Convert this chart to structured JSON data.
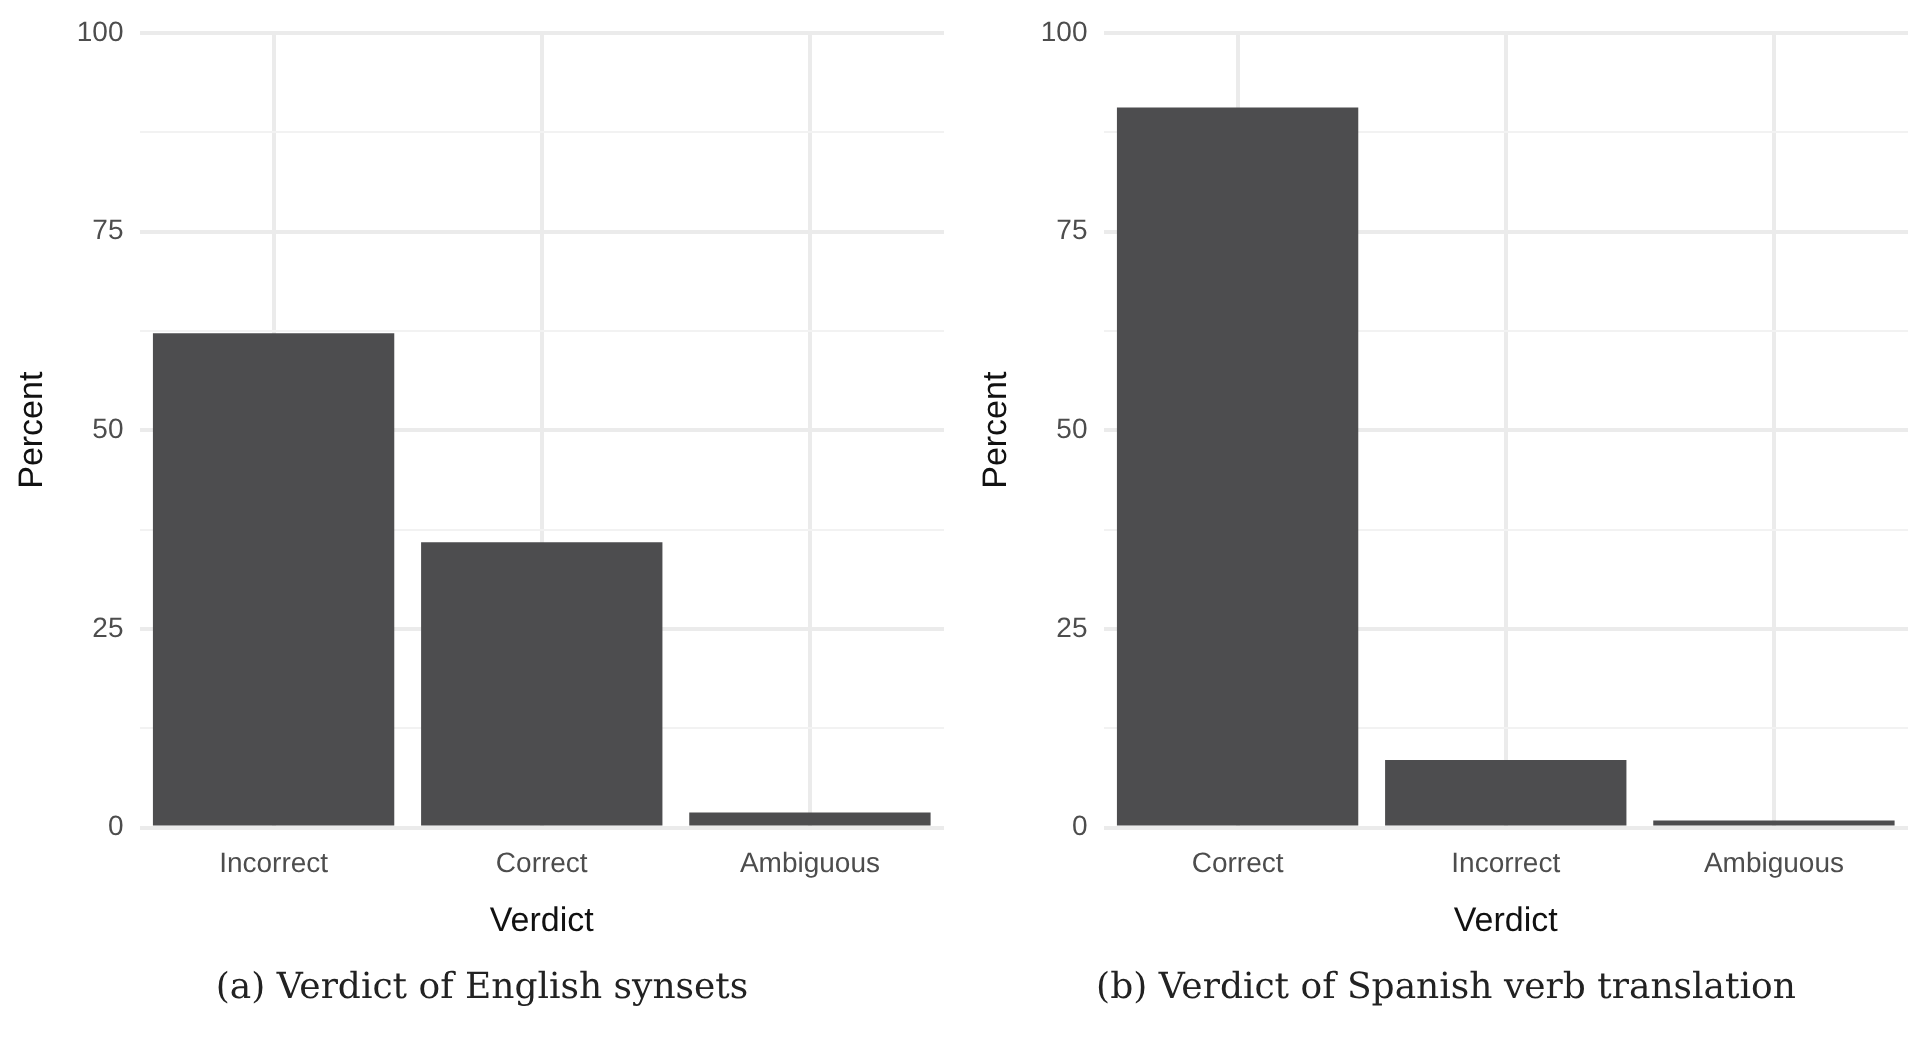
{
  "chart_data": [
    {
      "type": "bar",
      "xlabel": "Verdict",
      "ylabel": "Percent",
      "categories": [
        "Incorrect",
        "Correct",
        "Ambiguous"
      ],
      "values": [
        62.2,
        35.9,
        1.9
      ],
      "color": "#4d4d4f",
      "ylim": [
        0,
        100
      ],
      "yticks": [
        0,
        {
          "value": 12.5,
          "label": null
        },
        25,
        {
          "value": 37.5,
          "label": null
        },
        50,
        {
          "value": 62.5,
          "label": null
        },
        75,
        {
          "value": 87.5,
          "label": null
        },
        100
      ],
      "grid": true,
      "annotations": [
        "(a) Verdict of English synsets"
      ]
    },
    {
      "type": "bar",
      "xlabel": "Verdict",
      "ylabel": "Percent",
      "categories": [
        "Correct",
        "Incorrect",
        "Ambiguous"
      ],
      "values": [
        90.6,
        8.5,
        0.9
      ],
      "color": "#4d4d4f",
      "ylim": [
        0,
        100
      ],
      "yticks": [
        0,
        {
          "value": 12.5,
          "label": null
        },
        25,
        {
          "value": 37.5,
          "label": null
        },
        50,
        {
          "value": 62.5,
          "label": null
        },
        75,
        {
          "value": 87.5,
          "label": null
        },
        100
      ],
      "grid": true,
      "annotations": [
        "(b) Verdict of Spanish verb translation"
      ]
    }
  ]
}
